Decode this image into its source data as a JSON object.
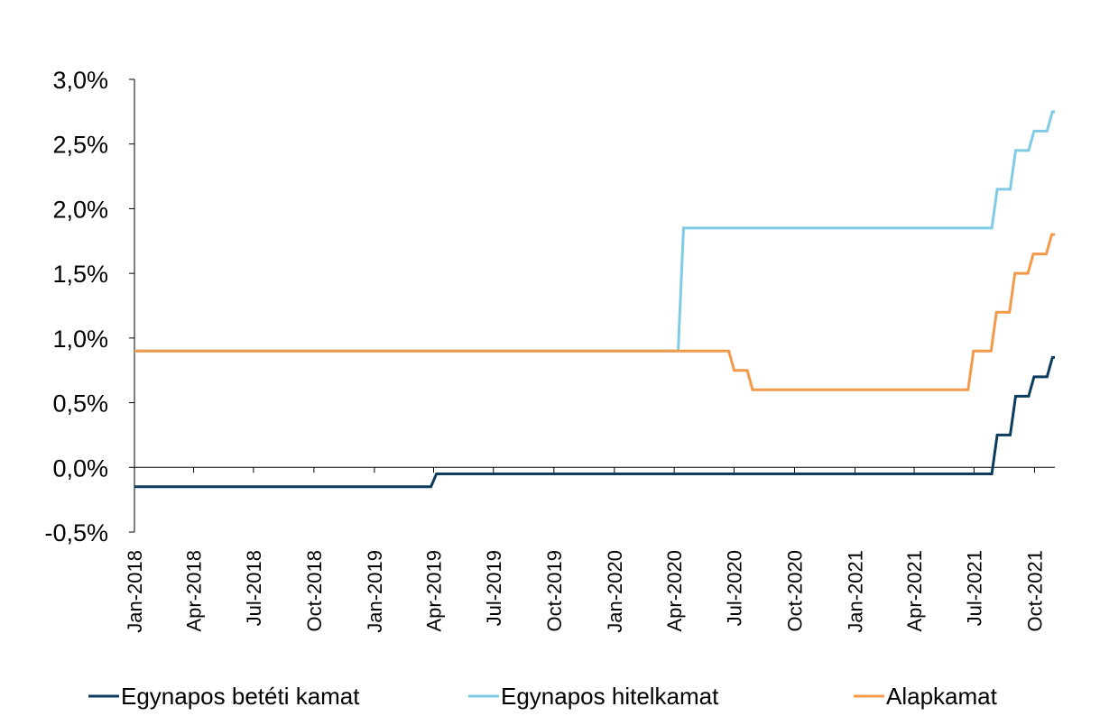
{
  "chart_data": {
    "type": "line",
    "title": "",
    "xlabel": "",
    "ylabel": "",
    "ylim": [
      -0.5,
      3.0
    ],
    "y_ticks": [
      "-0,5%",
      "0,0%",
      "0,5%",
      "1,0%",
      "1,5%",
      "2,0%",
      "2,5%",
      "3,0%"
    ],
    "x_ticks": [
      "Jan-2018",
      "Apr-2018",
      "Jul-2018",
      "Oct-2018",
      "Jan-2019",
      "Apr-2019",
      "Jul-2019",
      "Oct-2019",
      "Jan-2020",
      "Apr-2020",
      "Jul-2020",
      "Oct-2020",
      "Jan-2021",
      "Apr-2021",
      "Jul-2021",
      "Oct-2021"
    ],
    "x_start": "Jan-2018",
    "x_end": "Nov-2021",
    "grid": false,
    "legend_position": "bottom",
    "series": [
      {
        "name": "Egynapos betéti kamat",
        "color": "#0b3c5d",
        "steps": [
          [
            "2018-01-01",
            -0.15
          ],
          [
            "2019-03-28",
            -0.05
          ],
          [
            "2021-07-28",
            0.25
          ],
          [
            "2021-08-25",
            0.55
          ],
          [
            "2021-09-22",
            0.7
          ],
          [
            "2021-10-20",
            0.85
          ]
        ]
      },
      {
        "name": "Egynapos hitelkamat",
        "color": "#7ecbe3",
        "steps": [
          [
            "2018-01-01",
            0.9
          ],
          [
            "2020-04-07",
            1.85
          ],
          [
            "2021-07-28",
            2.15
          ],
          [
            "2021-08-25",
            2.45
          ],
          [
            "2021-09-22",
            2.6
          ],
          [
            "2021-10-20",
            2.75
          ]
        ]
      },
      {
        "name": "Alapkamat",
        "color": "#f2994a",
        "steps": [
          [
            "2018-01-01",
            0.9
          ],
          [
            "2020-06-23",
            0.75
          ],
          [
            "2020-07-21",
            0.6
          ],
          [
            "2021-06-22",
            0.9
          ],
          [
            "2021-07-27",
            1.2
          ],
          [
            "2021-08-24",
            1.5
          ],
          [
            "2021-09-21",
            1.65
          ],
          [
            "2021-10-19",
            1.8
          ]
        ]
      }
    ]
  }
}
